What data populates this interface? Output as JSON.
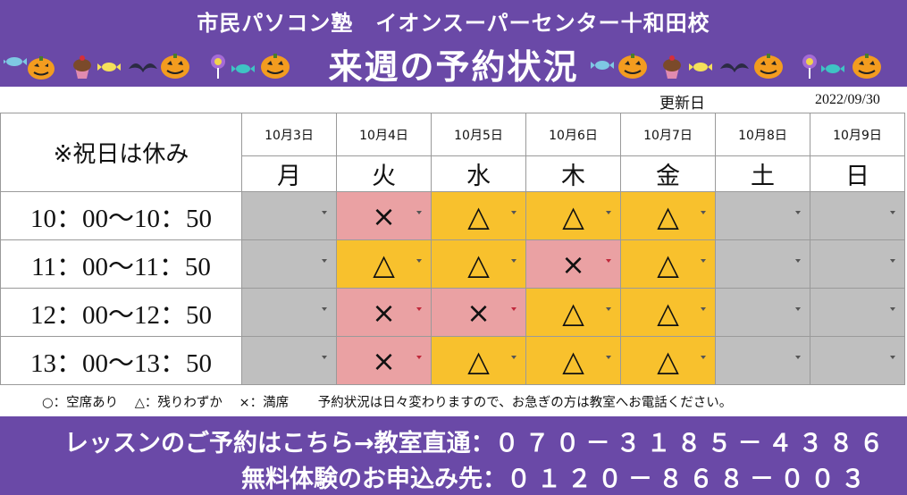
{
  "header": {
    "title_line1": "市民パソコン塾　イオンスーパーセンター十和田校",
    "title_line2": "来週の予約状況"
  },
  "updated": {
    "label": "更新日",
    "date": "2022/09/30"
  },
  "table": {
    "note": "※祝日は休み",
    "dates": [
      "10月3日",
      "10月4日",
      "10月5日",
      "10月6日",
      "10月7日",
      "10月8日",
      "10月9日"
    ],
    "days": [
      "月",
      "火",
      "水",
      "木",
      "金",
      "土",
      "日"
    ],
    "rows": [
      {
        "time": "10：00〜10：50",
        "slots": [
          "",
          "×",
          "△",
          "△",
          "△",
          "",
          ""
        ]
      },
      {
        "time": "11：00〜11：50",
        "slots": [
          "",
          "△",
          "△",
          "×",
          "△",
          "",
          ""
        ]
      },
      {
        "time": "12：00〜12：50",
        "slots": [
          "",
          "×",
          "×",
          "△",
          "△",
          "",
          ""
        ]
      },
      {
        "time": "13：00〜13：50",
        "slots": [
          "",
          "×",
          "△",
          "△",
          "△",
          "",
          ""
        ]
      }
    ]
  },
  "legend": {
    "vacant": "○：空席あり",
    "few": "△：残りわずか",
    "full": "×：満席",
    "notice": "予約状況は日々変わりますので、お急ぎの方は教室へお電話ください。"
  },
  "footer": {
    "lesson_label": "レッスンのご予約はこちら→教室直通：",
    "lesson_phone": "０７０－３１８５－４３８６",
    "trial_label": "無料体験のお申込み先：",
    "trial_phone": "０１２０－８６８－００３"
  },
  "colors": {
    "header_bg": "#6a49a7",
    "closed": "#bfbfbf",
    "full": "#eaa1a3",
    "few": "#f8c12d"
  },
  "icons": [
    "pumpkin-icon",
    "candy-icon",
    "cupcake-icon",
    "lollipop-icon"
  ]
}
